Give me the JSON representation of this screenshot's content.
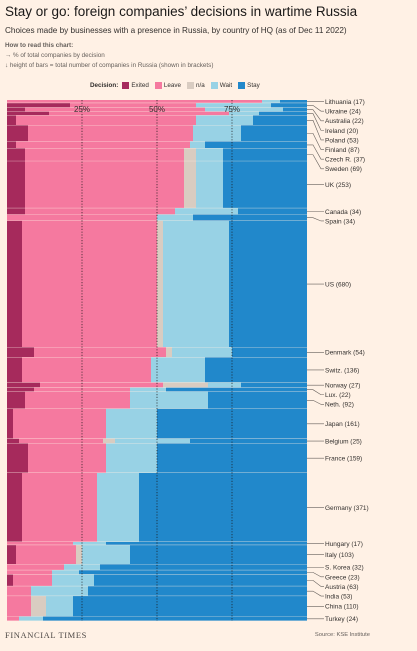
{
  "header": {
    "title": "Stay or go: foreign companies’ decisions in wartime Russia",
    "subtitle": "Choices made by businesses with a presence in Russia, by country of HQ (as of Dec 11 2022)"
  },
  "how_to_read": {
    "heading": "How to read this chart:",
    "line1": "→ % of total companies by decision",
    "line2": "↓ height of bars = total number of companies in Russia (shown in brackets)"
  },
  "legend": {
    "title": "Decision:",
    "items": [
      {
        "name": "Exited",
        "color": "#a62a5c"
      },
      {
        "name": "Leave",
        "color": "#f5799f"
      },
      {
        "name": "n/a",
        "color": "#d9ccc1"
      },
      {
        "name": "Wait",
        "color": "#98d2e5"
      },
      {
        "name": "Stay",
        "color": "#2188cb"
      }
    ]
  },
  "chart_data": {
    "type": "marimekko",
    "orientation": "horizontal",
    "x_ticks": [
      "25%",
      "50%",
      "75%"
    ],
    "x_tick_values": [
      25,
      50,
      75
    ],
    "xlim": [
      0,
      100
    ],
    "series_order": [
      "Exited",
      "Leave",
      "n/a",
      "Wait",
      "Stay"
    ],
    "countries": [
      {
        "label": "Lithuania (17)",
        "count": 17,
        "values": [
          0,
          85,
          0,
          6,
          9
        ]
      },
      {
        "label": "Ukraine (24)",
        "count": 24,
        "values": [
          21,
          42,
          0,
          25,
          12
        ]
      },
      {
        "label": "Australia (22)",
        "count": 22,
        "values": [
          6,
          60,
          0,
          26,
          8
        ]
      },
      {
        "label": "Ireland (20)",
        "count": 20,
        "values": [
          14,
          60,
          0,
          10,
          16
        ]
      },
      {
        "label": "Poland (53)",
        "count": 53,
        "values": [
          3,
          60,
          0,
          19,
          18
        ]
      },
      {
        "label": "Finland (87)",
        "count": 87,
        "values": [
          7,
          55,
          0,
          16,
          22
        ]
      },
      {
        "label": "Czech R. (37)",
        "count": 37,
        "values": [
          3,
          58,
          0,
          5,
          34
        ]
      },
      {
        "label": "Sweden (69)",
        "count": 69,
        "values": [
          6,
          53,
          4,
          9,
          28
        ]
      },
      {
        "label": "UK (253)",
        "count": 253,
        "values": [
          6,
          53,
          4,
          9,
          28
        ]
      },
      {
        "label": "Canada (34)",
        "count": 34,
        "values": [
          6,
          50,
          0,
          21,
          23
        ]
      },
      {
        "label": "Spain (34)",
        "count": 34,
        "values": [
          0,
          50,
          0,
          12,
          38
        ]
      },
      {
        "label": "US (680)",
        "count": 680,
        "values": [
          5,
          45,
          2,
          22,
          26
        ]
      },
      {
        "label": "Denmark (54)",
        "count": 54,
        "values": [
          9,
          44,
          2,
          20,
          25
        ]
      },
      {
        "label": "Switz. (136)",
        "count": 136,
        "values": [
          5,
          43,
          0,
          18,
          34
        ]
      },
      {
        "label": "Norway (27)",
        "count": 27,
        "values": [
          11,
          41,
          15,
          11,
          22
        ]
      },
      {
        "label": "Lux. (22)",
        "count": 22,
        "values": [
          9,
          32,
          0,
          12,
          47
        ]
      },
      {
        "label": "Neth. (92)",
        "count": 92,
        "values": [
          6,
          35,
          0,
          26,
          33
        ]
      },
      {
        "label": "Japan (161)",
        "count": 161,
        "values": [
          2,
          31,
          0,
          17,
          50
        ]
      },
      {
        "label": "Belgium (25)",
        "count": 25,
        "values": [
          4,
          28,
          4,
          25,
          39
        ]
      },
      {
        "label": "France (159)",
        "count": 159,
        "values": [
          7,
          26,
          0,
          17,
          50
        ]
      },
      {
        "label": "Germany (371)",
        "count": 371,
        "values": [
          5,
          25,
          0,
          14,
          56
        ]
      },
      {
        "label": "Hungary (17)",
        "count": 17,
        "values": [
          0,
          22,
          0,
          11,
          67
        ]
      },
      {
        "label": "Italy (103)",
        "count": 103,
        "values": [
          3,
          20,
          2,
          16,
          59
        ]
      },
      {
        "label": "S. Korea (32)",
        "count": 32,
        "values": [
          0,
          19,
          0,
          12,
          69
        ]
      },
      {
        "label": "Greece (23)",
        "count": 23,
        "values": [
          0,
          15,
          0,
          9,
          76
        ]
      },
      {
        "label": "Austria (63)",
        "count": 63,
        "values": [
          2,
          13,
          0,
          14,
          71
        ]
      },
      {
        "label": "India (53)",
        "count": 53,
        "values": [
          0,
          8,
          0,
          19,
          73
        ]
      },
      {
        "label": "China (110)",
        "count": 110,
        "values": [
          0,
          8,
          5,
          9,
          78
        ]
      },
      {
        "label": "Turkey (24)",
        "count": 24,
        "values": [
          0,
          4,
          0,
          8,
          88
        ]
      }
    ]
  },
  "footer": {
    "publisher": "FINANCIAL TIMES",
    "source": "Source: KSE Institute"
  }
}
